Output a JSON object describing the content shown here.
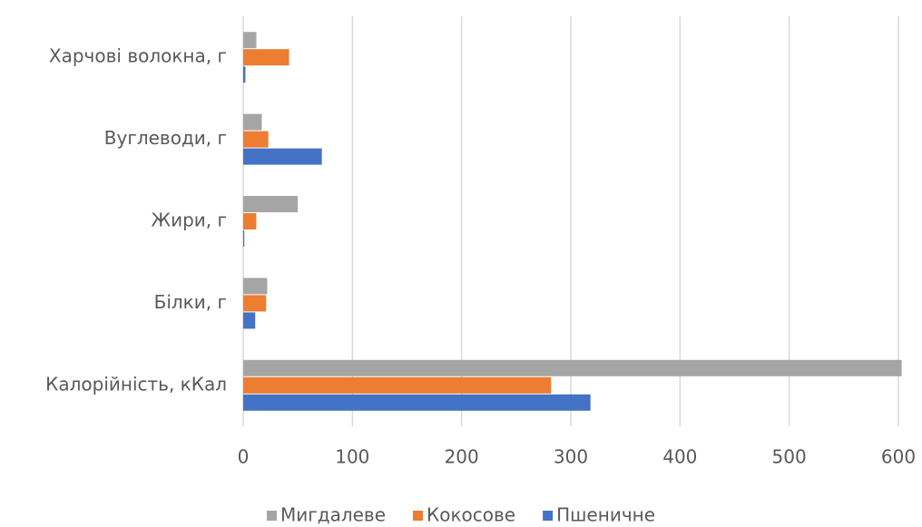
{
  "chart_data": {
    "type": "hbar",
    "categories": [
      "Калорійність, кКал",
      "Білки, г",
      "Жири, г",
      "Вуглеводи, г",
      "Харчові волокна, г"
    ],
    "series": [
      {
        "name": "Мигдалеве",
        "color": "#a5a5a5",
        "values": [
          603,
          22,
          50,
          17,
          12
        ]
      },
      {
        "name": "Кокосове",
        "color": "#ed7d31",
        "values": [
          282,
          21,
          12,
          23,
          42
        ]
      },
      {
        "name": "Пшеничне",
        "color": "#4472c4",
        "values": [
          318,
          11,
          1,
          72,
          2
        ]
      }
    ],
    "xlim": [
      0,
      605
    ],
    "xticks": [
      0,
      100,
      200,
      300,
      400,
      500,
      600
    ],
    "grid": true,
    "legend": "bottom"
  }
}
